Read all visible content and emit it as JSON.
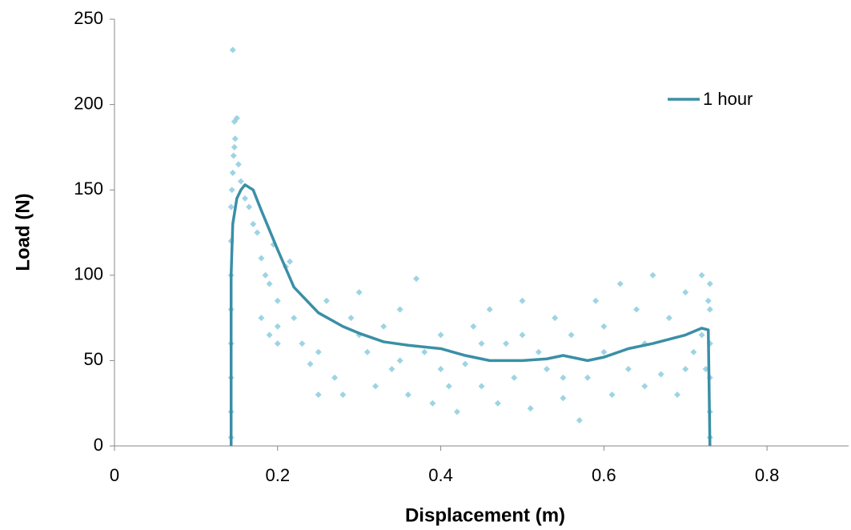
{
  "chart_data": {
    "type": "scatter",
    "x_label": "Displacement (m)",
    "y_label": "Load (N)",
    "xlim": [
      0,
      0.9
    ],
    "ylim": [
      0,
      250
    ],
    "xticks": [
      0,
      0.2,
      0.4,
      0.6,
      0.8
    ],
    "yticks": [
      0,
      50,
      100,
      150,
      200,
      250
    ],
    "grid": false,
    "legend": "upper right",
    "series": [
      {
        "type": "scatter",
        "color": "#7cc5d9",
        "x": [
          0.145,
          0.147,
          0.15,
          0.148,
          0.146,
          0.145,
          0.144,
          0.143,
          0.143,
          0.143,
          0.143,
          0.143,
          0.143,
          0.143,
          0.143,
          0.147,
          0.152,
          0.155,
          0.16,
          0.165,
          0.17,
          0.175,
          0.18,
          0.185,
          0.19,
          0.195,
          0.2,
          0.2,
          0.21,
          0.215,
          0.22,
          0.18,
          0.19,
          0.2,
          0.23,
          0.24,
          0.25,
          0.26,
          0.27,
          0.28,
          0.29,
          0.3,
          0.31,
          0.32,
          0.33,
          0.34,
          0.35,
          0.36,
          0.37,
          0.38,
          0.39,
          0.4,
          0.41,
          0.42,
          0.43,
          0.44,
          0.45,
          0.46,
          0.47,
          0.48,
          0.49,
          0.5,
          0.51,
          0.52,
          0.53,
          0.54,
          0.55,
          0.56,
          0.57,
          0.58,
          0.59,
          0.6,
          0.61,
          0.62,
          0.63,
          0.64,
          0.65,
          0.66,
          0.67,
          0.68,
          0.69,
          0.7,
          0.71,
          0.72,
          0.725,
          0.73,
          0.73,
          0.73,
          0.73,
          0.73,
          0.73,
          0.728,
          0.72,
          0.35,
          0.45,
          0.55,
          0.65,
          0.25,
          0.3,
          0.4,
          0.5,
          0.6,
          0.7
        ],
        "values": [
          232,
          190,
          192,
          180,
          170,
          160,
          150,
          140,
          120,
          100,
          80,
          60,
          40,
          20,
          5,
          175,
          165,
          155,
          145,
          140,
          130,
          125,
          110,
          100,
          95,
          118,
          85,
          70,
          105,
          108,
          75,
          75,
          65,
          60,
          60,
          48,
          55,
          85,
          40,
          30,
          75,
          90,
          55,
          35,
          70,
          45,
          80,
          30,
          98,
          55,
          25,
          65,
          35,
          20,
          48,
          70,
          35,
          80,
          25,
          60,
          40,
          85,
          22,
          55,
          45,
          75,
          28,
          65,
          15,
          40,
          85,
          55,
          30,
          95,
          45,
          80,
          60,
          100,
          42,
          75,
          30,
          90,
          55,
          100,
          45,
          95,
          80,
          60,
          40,
          20,
          5,
          85,
          65,
          50,
          60,
          40,
          35,
          30,
          65,
          45,
          65,
          70,
          45
        ]
      },
      {
        "type": "line",
        "name": "1 hour",
        "color": "#3a8fa6",
        "x": [
          0.143,
          0.143,
          0.145,
          0.15,
          0.155,
          0.16,
          0.17,
          0.18,
          0.2,
          0.22,
          0.25,
          0.28,
          0.3,
          0.33,
          0.36,
          0.4,
          0.43,
          0.46,
          0.5,
          0.53,
          0.55,
          0.58,
          0.6,
          0.63,
          0.66,
          0.7,
          0.72,
          0.728,
          0.73
        ],
        "values": [
          0,
          100,
          130,
          145,
          150,
          153,
          150,
          138,
          115,
          93,
          78,
          70,
          66,
          61,
          59,
          57,
          53,
          50,
          50,
          51,
          53,
          50,
          52,
          57,
          60,
          65,
          69,
          68,
          0
        ]
      }
    ]
  }
}
